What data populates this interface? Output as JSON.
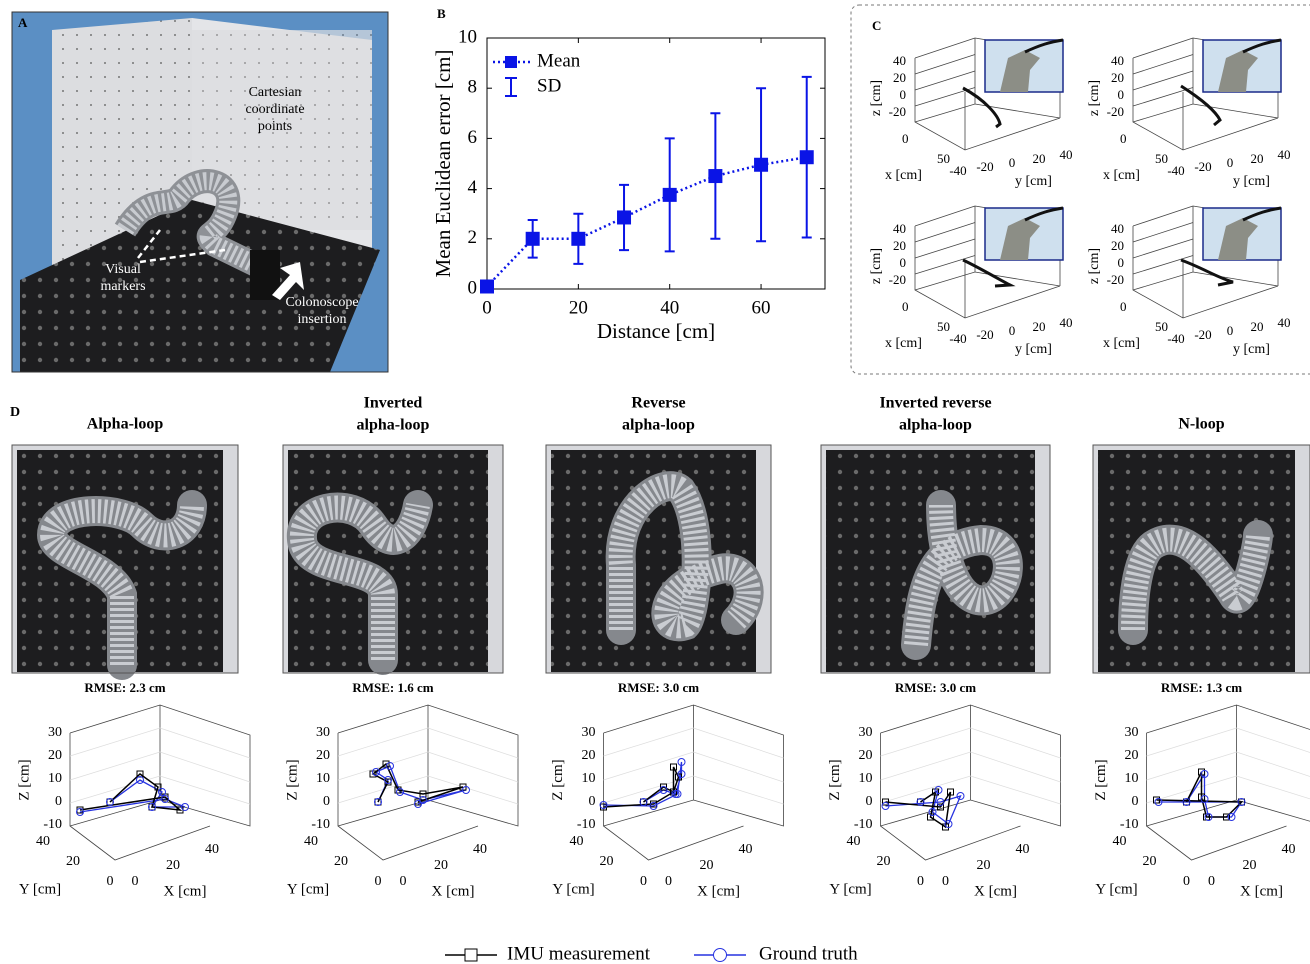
{
  "panel_a": {
    "label": "A",
    "annotations": [
      [
        "Cartesian",
        "coordinate",
        "points"
      ],
      [
        "Visual",
        "markers"
      ],
      [
        "Colonoscope",
        "insertion"
      ]
    ]
  },
  "chart_data": {
    "type": "errorbar",
    "label": "B",
    "x": [
      0,
      10,
      20,
      30,
      40,
      50,
      60,
      70
    ],
    "series": [
      {
        "name": "Mean",
        "color": "#0a14e6",
        "values": [
          0.1,
          2,
          2,
          2.85,
          3.75,
          4.5,
          4.95,
          5.25
        ],
        "errors": [
          0,
          0.75,
          1,
          1.3,
          2.25,
          2.5,
          3.05,
          3.2
        ]
      }
    ],
    "error_name": "SD",
    "xlabel": "Distance [cm]",
    "ylabel": "Mean Euclidean error [cm]",
    "xlim": [
      0,
      74
    ],
    "ylim": [
      0,
      10
    ],
    "xticks": [
      0,
      20,
      40,
      60
    ],
    "yticks": [
      0,
      2,
      4,
      6,
      8,
      10
    ]
  },
  "panel_c": {
    "label": "C",
    "z_ticks": [
      "40",
      "20",
      "0",
      "-20"
    ],
    "x_ticks": [
      "0",
      "50"
    ],
    "y_ticks": [
      "-40",
      "-20",
      "0",
      "20",
      "40"
    ],
    "xlabel": "x [cm]",
    "ylabel": "y [cm]",
    "zlabel": "z [cm]"
  },
  "panel_d": {
    "label": "D",
    "loops": [
      {
        "title": [
          "Alpha-loop"
        ],
        "rmse": "RMSE: 2.3 cm"
      },
      {
        "title": [
          "Inverted",
          "alpha-loop"
        ],
        "rmse": "RMSE: 1.6 cm"
      },
      {
        "title": [
          "Reverse",
          "alpha-loop"
        ],
        "rmse": "RMSE: 3.0 cm"
      },
      {
        "title": [
          "Inverted reverse",
          "alpha-loop"
        ],
        "rmse": "RMSE: 3.0 cm"
      },
      {
        "title": [
          "N-loop"
        ],
        "rmse": "RMSE: 1.3 cm"
      }
    ],
    "z_ticks": [
      "30",
      "20",
      "10",
      "0",
      "-10"
    ],
    "y_ticks": [
      "40",
      "20",
      "0"
    ],
    "x_ticks": [
      "0",
      "20",
      "40"
    ],
    "zlabel": "Z [cm]",
    "ylabel": "Y [cm]",
    "xlabel": "X [cm]",
    "legend": [
      "IMU measurement",
      "Ground truth"
    ]
  }
}
